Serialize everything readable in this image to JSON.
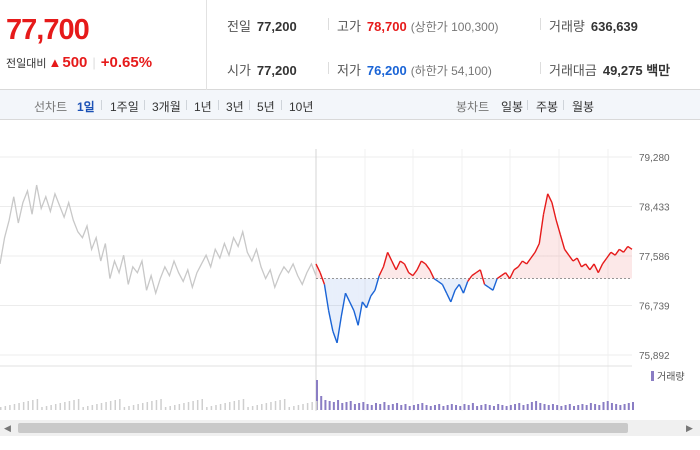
{
  "summary": {
    "price": "77,700",
    "change_label": "전일대비",
    "change_arrow": "▲",
    "change_amount": "500",
    "change_pct": "+0.65%",
    "prev_close": {
      "label": "전일",
      "value": "77,200"
    },
    "high": {
      "label": "고가",
      "value": "78,700",
      "sub": "(상한가 100,300)"
    },
    "volume": {
      "label": "거래량",
      "value": "636,639"
    },
    "open": {
      "label": "시가",
      "value": "77,200"
    },
    "low": {
      "label": "저가",
      "value": "76,200",
      "sub": "(하한가 54,100)"
    },
    "trade_value": {
      "label": "거래대금",
      "value": "49,275 백만"
    }
  },
  "toolbar": {
    "line_chart_label": "선차트",
    "periods": [
      "1일",
      "1주일",
      "3개월",
      "1년",
      "3년",
      "5년",
      "10년"
    ],
    "active_period": "1일",
    "candle_label": "봉차트",
    "candles": [
      "일봉",
      "주봉",
      "월봉"
    ]
  },
  "colors": {
    "up": "#e61a1a",
    "down": "#1a64d6",
    "prev_day": "#c8c8c8",
    "volume": "#8a7dc4"
  },
  "chart_data": {
    "type": "line",
    "yticks": [
      79280,
      78433,
      77586,
      76739,
      75892
    ],
    "ylim": [
      75892,
      79280
    ],
    "baseline": 77200,
    "volume_legend": "거래량",
    "prev_day_series": [
      77450,
      77900,
      78200,
      78600,
      78150,
      78500,
      78700,
      78300,
      78800,
      78400,
      78600,
      78350,
      78650,
      78450,
      78250,
      78500,
      78200,
      78000,
      77900,
      78100,
      77700,
      77900,
      77500,
      77800,
      77200,
      77500,
      77300,
      77600,
      77100,
      77400,
      77300,
      77500,
      77000,
      77250,
      76950,
      77200,
      77400,
      77250,
      77500,
      77300,
      77150,
      77350,
      77050,
      77300,
      77450,
      77600,
      77400,
      77700,
      77550,
      77800,
      77600,
      77900,
      77750,
      78000,
      77650,
      77500,
      77700,
      77400,
      77200,
      77350,
      77050,
      77250,
      77400,
      77300,
      77450,
      77250,
      77100,
      77300,
      77450,
      77250
    ],
    "today_series": [
      77450,
      77300,
      77100,
      76650,
      76300,
      76100,
      76550,
      76950,
      76800,
      76650,
      76400,
      76800,
      76700,
      76900,
      77000,
      77250,
      77400,
      77650,
      77500,
      77350,
      77500,
      77450,
      77300,
      77250,
      77350,
      77500,
      77450,
      77350,
      77200,
      77150,
      77100,
      76950,
      76800,
      77000,
      77100,
      76950,
      77150,
      77250,
      77300,
      77350,
      77100,
      77050,
      77000,
      77200,
      77250,
      77300,
      77200,
      77350,
      77400,
      77500,
      77450,
      77550,
      77650,
      77800,
      78300,
      78650,
      78500,
      78200,
      77950,
      77700,
      77600,
      77500,
      77550,
      77400,
      77450,
      77350,
      77450,
      77300,
      77450,
      77550,
      77650,
      77600,
      77700,
      77650,
      77750,
      77700
    ],
    "volume_today": [
      30,
      14,
      10,
      9,
      8,
      10,
      7,
      8,
      9,
      6,
      7,
      8,
      6,
      5,
      7,
      6,
      8,
      5,
      6,
      7,
      5,
      6,
      4,
      5,
      6,
      7,
      5,
      4,
      5,
      6,
      4,
      5,
      6,
      5,
      4,
      6,
      5,
      7,
      4,
      5,
      6,
      5,
      4,
      6,
      5,
      4,
      5,
      6,
      7,
      5,
      6,
      8,
      9,
      7,
      6,
      5,
      6,
      5,
      4,
      5,
      6,
      4,
      5,
      6,
      5,
      7,
      6,
      5,
      8,
      9,
      7,
      6,
      5,
      6,
      7,
      8
    ]
  }
}
